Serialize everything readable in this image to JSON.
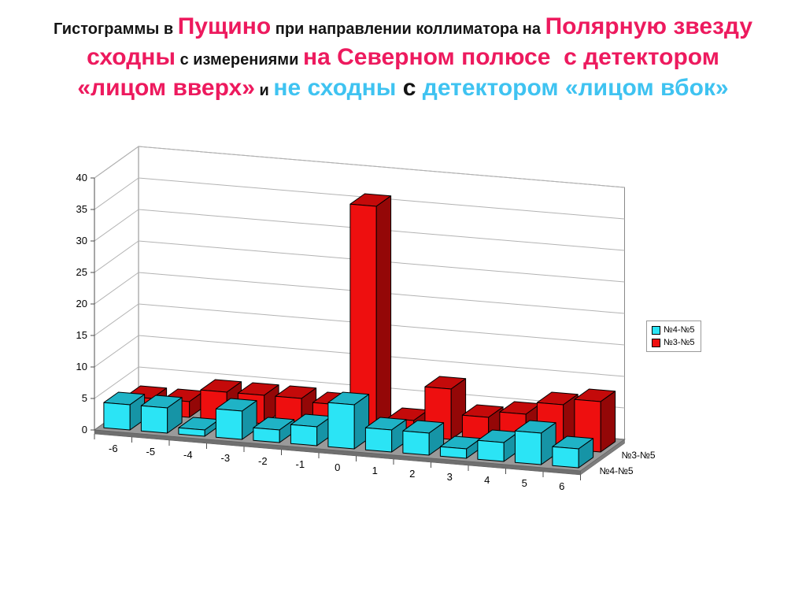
{
  "slide": {
    "background": "#ffffff",
    "accent_pink": "#ED1A5E",
    "accent_cyan": "#3FC3F1"
  },
  "title": {
    "full_text": "Гистограммы в Пущино при направлении коллиматора на Полярную звезду сходны с измерениями на Северном полюсе  с детектором «лицом вверх» и не сходны с детектором «лицом вбок»",
    "segments": [
      {
        "text": "Гистограммы в ",
        "style": "sm-black"
      },
      {
        "text": "Пущино",
        "style": "lg-pink"
      },
      {
        "text": " при направлении коллиматора на ",
        "style": "sm-black"
      },
      {
        "text": "Полярную звезду сходны",
        "style": "lg-pink"
      },
      {
        "text": " с измерениями ",
        "style": "sm-black"
      },
      {
        "text": "на Северном полюсе  с детектором «лицом вверх»",
        "style": "lg-pink"
      },
      {
        "text": " и ",
        "style": "sm-black"
      },
      {
        "text": "не сходны",
        "style": "lg-cyan"
      },
      {
        "text": " с ",
        "style": "lg-black"
      },
      {
        "text": "детектором «лицом вбок»",
        "style": "lg-cyan"
      }
    ]
  },
  "chart_data": {
    "type": "bar",
    "projection": "3d",
    "title": "",
    "xlabel": "",
    "ylabel": "",
    "grid": true,
    "categories": [
      "-6",
      "-5",
      "-4",
      "-3",
      "-2",
      "-1",
      "0",
      "1",
      "2",
      "3",
      "4",
      "5",
      "6"
    ],
    "series": [
      {
        "name": "№4-№5",
        "row": "front",
        "values": [
          4,
          4,
          1,
          4.5,
          2,
          3,
          7,
          3.5,
          3.5,
          1.5,
          3,
          5,
          3
        ],
        "colors": {
          "front": "#2BE4F5",
          "top": "#1FB3C6",
          "side": "#1694A6"
        }
      },
      {
        "name": "№3-№5",
        "row": "back",
        "values": [
          2.5,
          2.5,
          4.5,
          4.5,
          4.5,
          4,
          36,
          2.5,
          8,
          4,
          5,
          7,
          8
        ],
        "colors": {
          "front": "#EE0F0F",
          "top": "#C40A0A",
          "side": "#940707"
        }
      }
    ],
    "value_axis": {
      "min": 0,
      "max": 40,
      "step": 5
    },
    "series_axis_labels": [
      {
        "text": "№3-№5",
        "row": 1
      },
      {
        "text": "№4-№5",
        "row": 0
      }
    ],
    "legend": {
      "position": "right",
      "items": [
        {
          "label": "№4-№5",
          "color": "#2BE4F5"
        },
        {
          "label": "№3-№5",
          "color": "#EE0F0F"
        }
      ]
    },
    "colors": {
      "wall": "#ffffff",
      "wall_edge": "#8a8a8a",
      "gridline": "#b3b3b3",
      "floor_top": "#9a9a9a",
      "floor_side": "#6f6f6f",
      "axis": "#4d4d4d",
      "tick_label": "#000000"
    }
  }
}
